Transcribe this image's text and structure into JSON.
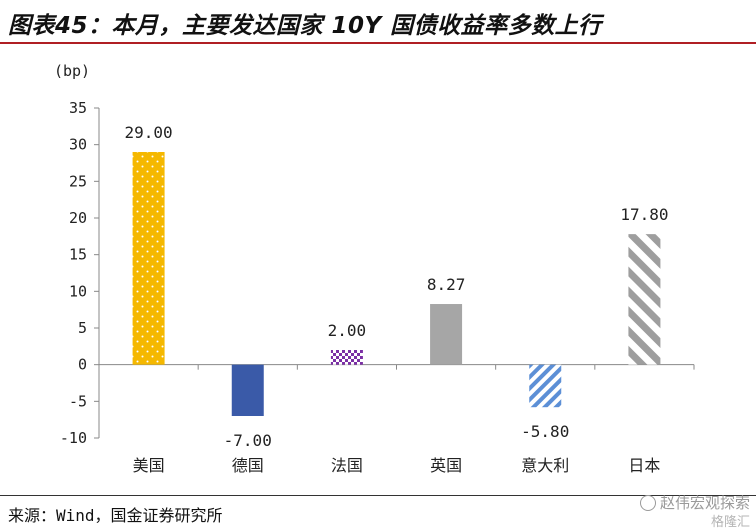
{
  "header": {
    "title": "图表45：本月，主要发达国家 10Y 国债收益率多数上行"
  },
  "footer": {
    "source": "来源：Wind，国金证券研究所",
    "watermark": "赵伟宏观探索",
    "watermark_sub": "格隆汇"
  },
  "colors": {
    "title_rule": "#b01f24",
    "us": "#f5b800",
    "de": "#3a5aa8",
    "fr": "#7b2fa5",
    "uk": "#a6a6a6",
    "it": "#5c8fd6",
    "jp": "#9e9e9e"
  },
  "chart_data": {
    "type": "bar",
    "unit_label": "(bp)",
    "categories": [
      "美国",
      "德国",
      "法国",
      "英国",
      "意大利",
      "日本"
    ],
    "values": [
      29.0,
      -7.0,
      2.0,
      8.27,
      -5.8,
      17.8
    ],
    "data_labels": [
      "29.00",
      "-7.00",
      "2.00",
      "8.27",
      "-5.80",
      "17.80"
    ],
    "bar_styles": [
      "dotted",
      "solid",
      "checker",
      "solid",
      "diagonal-small",
      "diagonal-wide"
    ],
    "ylim": [
      -10,
      35
    ],
    "yticks": [
      35,
      30,
      25,
      20,
      15,
      10,
      5,
      0,
      -5,
      -10
    ],
    "ytick_labels": [
      "35",
      "30",
      "25",
      "20",
      "15",
      "10",
      "5",
      "0",
      "-5",
      "-10"
    ],
    "grid": false,
    "legend": "none",
    "title": "",
    "xlabel": "",
    "ylabel": ""
  }
}
